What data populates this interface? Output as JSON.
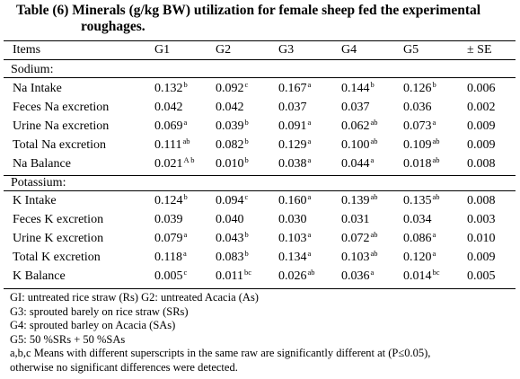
{
  "title_line1": "Table (6) Minerals (g/kg BW) utilization for female sheep fed the experimental",
  "title_line2": "roughages.",
  "columns": [
    "Items",
    "G1",
    "G2",
    "G3",
    "G4",
    "G5",
    "± SE"
  ],
  "sections": [
    {
      "name": "Sodium:",
      "rows": [
        {
          "item": "Na Intake",
          "cells": [
            {
              "v": "0.132",
              "s": "b"
            },
            {
              "v": "0.092",
              "s": "c"
            },
            {
              "v": "0.167",
              "s": "a"
            },
            {
              "v": "0.144",
              "s": "b"
            },
            {
              "v": "0.126",
              "s": "b"
            },
            {
              "v": "0.006",
              "s": ""
            }
          ]
        },
        {
          "item": "Feces Na excretion",
          "cells": [
            {
              "v": "0.042",
              "s": ""
            },
            {
              "v": "0.042",
              "s": ""
            },
            {
              "v": "0.037",
              "s": ""
            },
            {
              "v": "0.037",
              "s": ""
            },
            {
              "v": "0.036",
              "s": ""
            },
            {
              "v": "0.002",
              "s": ""
            }
          ]
        },
        {
          "item": "Urine Na excretion",
          "cells": [
            {
              "v": "0.069",
              "s": "a"
            },
            {
              "v": "0.039",
              "s": "b"
            },
            {
              "v": "0.091",
              "s": "a"
            },
            {
              "v": "0.062",
              "s": "ab"
            },
            {
              "v": "0.073",
              "s": "a"
            },
            {
              "v": "0.009",
              "s": ""
            }
          ]
        },
        {
          "item": "Total Na excretion",
          "cells": [
            {
              "v": "0.111",
              "s": "ab"
            },
            {
              "v": "0.082",
              "s": "b"
            },
            {
              "v": "0.129",
              "s": "a"
            },
            {
              "v": "0.100",
              "s": "ab"
            },
            {
              "v": "0.109",
              "s": "ab"
            },
            {
              "v": "0.009",
              "s": ""
            }
          ]
        },
        {
          "item": "Na Balance",
          "cells": [
            {
              "v": "0.021",
              "s": "A b"
            },
            {
              "v": "0.010",
              "s": "b"
            },
            {
              "v": "0.038",
              "s": "a"
            },
            {
              "v": "0.044",
              "s": "a"
            },
            {
              "v": "0.018",
              "s": "ab"
            },
            {
              "v": "0.008",
              "s": ""
            }
          ]
        }
      ]
    },
    {
      "name": "Potassium:",
      "rows": [
        {
          "item": "K Intake",
          "cells": [
            {
              "v": "0.124",
              "s": "b"
            },
            {
              "v": "0.094",
              "s": "c"
            },
            {
              "v": "0.160",
              "s": "a"
            },
            {
              "v": "0.139",
              "s": "ab"
            },
            {
              "v": "0.135",
              "s": "ab"
            },
            {
              "v": "0.008",
              "s": ""
            }
          ]
        },
        {
          "item": "Feces K excretion",
          "cells": [
            {
              "v": "0.039",
              "s": ""
            },
            {
              "v": "0.040",
              "s": ""
            },
            {
              "v": "0.030",
              "s": ""
            },
            {
              "v": "0.031",
              "s": ""
            },
            {
              "v": "0.034",
              "s": ""
            },
            {
              "v": "0.003",
              "s": ""
            }
          ]
        },
        {
          "item": "Urine K excretion",
          "cells": [
            {
              "v": "0.079",
              "s": "a"
            },
            {
              "v": "0.043",
              "s": "b"
            },
            {
              "v": "0.103",
              "s": "a"
            },
            {
              "v": "0.072",
              "s": "ab"
            },
            {
              "v": "0.086",
              "s": "a"
            },
            {
              "v": "0.010",
              "s": ""
            }
          ]
        },
        {
          "item": "Total K excretion",
          "cells": [
            {
              "v": "0.118",
              "s": "a"
            },
            {
              "v": "0.083",
              "s": "b"
            },
            {
              "v": "0.134",
              "s": "a"
            },
            {
              "v": "0.103",
              "s": "ab"
            },
            {
              "v": "0.120",
              "s": "a"
            },
            {
              "v": "0.009",
              "s": ""
            }
          ]
        },
        {
          "item": "K Balance",
          "cells": [
            {
              "v": "0.005",
              "s": "c"
            },
            {
              "v": "0.011",
              "s": "bc"
            },
            {
              "v": "0.026",
              "s": "ab"
            },
            {
              "v": "0.036",
              "s": "a"
            },
            {
              "v": "0.014",
              "s": "bc"
            },
            {
              "v": "0.005",
              "s": ""
            }
          ]
        }
      ]
    }
  ],
  "footnotes": [
    "GI: untreated rice straw (Rs) G2: untreated Acacia (As)",
    "G3: sprouted barely on rice straw (SRs)",
    "G4: sprouted barley on Acacia (SAs)",
    "G5: 50 %SRs + 50 %SAs",
    "a,b,c Means with different superscripts in the same  raw are significantly different at (P≤0.05),",
    "otherwise no significant differences were detected."
  ]
}
